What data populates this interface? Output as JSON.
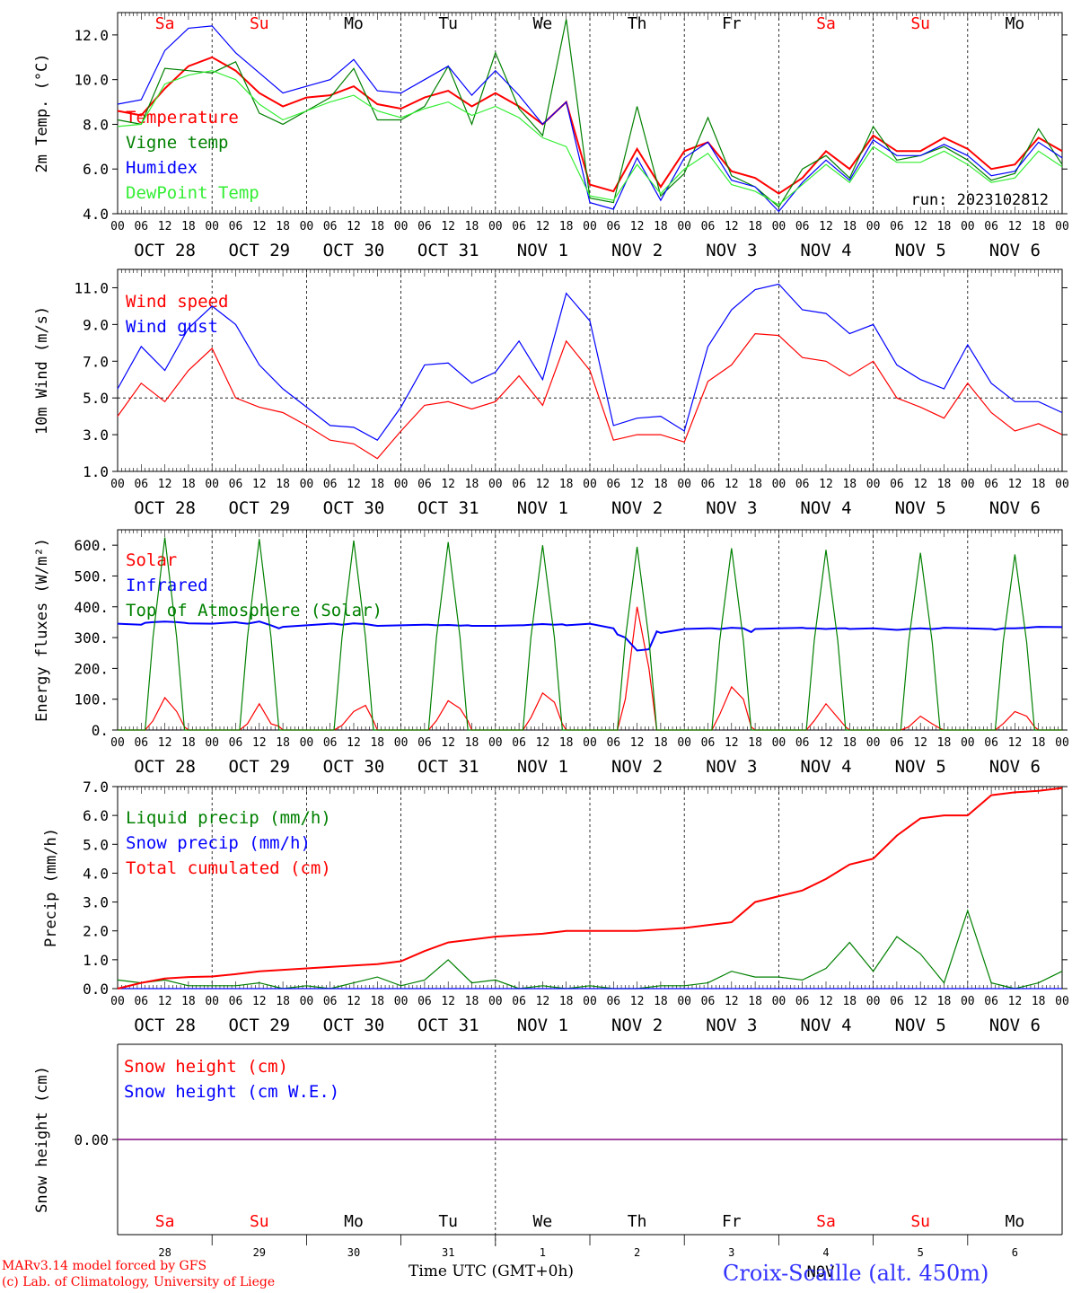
{
  "days": [
    "Sa",
    "Su",
    "Mo",
    "Tu",
    "We",
    "Th",
    "Fr",
    "Sa",
    "Su",
    "Mo"
  ],
  "weekend_flags": [
    true,
    true,
    false,
    false,
    false,
    false,
    false,
    true,
    true,
    false
  ],
  "dates": [
    "OCT 28",
    "OCT 29",
    "OCT 30",
    "OCT 31",
    "NOV  1",
    "NOV  2",
    "NOV  3",
    "NOV  4",
    "NOV  5",
    "NOV  6"
  ],
  "hour_ticks": [
    "00",
    "06",
    "12",
    "18"
  ],
  "last_hour_tick": "00",
  "bottom_day_numbers": [
    "28",
    "29",
    "30",
    "31",
    "1",
    "2",
    "3",
    "4",
    "5",
    "6"
  ],
  "bottom_month_label": "NOV",
  "colors": {
    "red": "#ff0000",
    "green": "#008000",
    "blue": "#0000ff",
    "lightgreen": "#33ee33",
    "purple": "#800080"
  },
  "footer": {
    "line1": "MARv3.14 model forced by GFS",
    "line2": "(c) Lab. of Climatology, University of Liege",
    "xlabel": "Time UTC (GMT+0h)",
    "station": "Croix-Scaille (alt. 450m)"
  },
  "chart_data": [
    {
      "type": "line",
      "ylabel": "2m Temp. (°C)",
      "ylim": [
        4.0,
        13.0
      ],
      "yticks": [
        "4.0",
        "6.0",
        "8.0",
        "10.0",
        "12.0"
      ],
      "ytick_values": [
        4,
        6,
        8,
        10,
        12
      ],
      "annotation": "run: 2023102812",
      "x_hours": [
        0,
        6,
        12,
        18,
        24,
        30,
        36,
        42,
        48,
        54,
        60,
        66,
        72,
        78,
        84,
        90,
        96,
        102,
        108,
        114,
        120,
        126,
        132,
        138,
        144,
        150,
        156,
        162,
        168,
        174,
        180,
        186,
        192,
        198,
        204,
        210,
        216,
        222,
        228,
        234,
        240
      ],
      "series": [
        {
          "name": "Temperature",
          "color": "#ff0000",
          "values": [
            8.6,
            8.4,
            9.6,
            10.6,
            11.0,
            10.4,
            9.4,
            8.8,
            9.2,
            9.3,
            9.7,
            8.9,
            8.7,
            9.2,
            9.5,
            8.8,
            9.4,
            8.8,
            8.0,
            9.0,
            5.3,
            5.0,
            6.9,
            5.2,
            6.8,
            7.2,
            5.9,
            5.6,
            4.9,
            5.6,
            6.8,
            6.0,
            7.5,
            6.8,
            6.8,
            7.4,
            6.9,
            6.0,
            6.2,
            7.4,
            6.8
          ]
        },
        {
          "name": "Vigne temp",
          "color": "#008000",
          "values": [
            8.2,
            8.0,
            10.5,
            10.4,
            10.3,
            10.8,
            8.5,
            8.0,
            8.6,
            9.2,
            10.5,
            8.2,
            8.2,
            8.8,
            10.6,
            8.0,
            11.2,
            8.7,
            7.5,
            12.7,
            4.7,
            4.5,
            8.8,
            4.8,
            5.8,
            8.3,
            5.7,
            5.2,
            4.3,
            6.0,
            6.6,
            5.6,
            7.9,
            6.4,
            6.6,
            7.0,
            6.4,
            5.5,
            5.8,
            7.8,
            6.2
          ]
        },
        {
          "name": "Humidex",
          "color": "#0000ff",
          "values": [
            8.9,
            9.1,
            11.3,
            12.3,
            12.4,
            11.2,
            10.3,
            9.4,
            9.7,
            10.0,
            10.9,
            9.5,
            9.4,
            10.0,
            10.6,
            9.3,
            10.4,
            9.3,
            8.0,
            9.0,
            4.5,
            4.2,
            6.5,
            4.6,
            6.5,
            7.2,
            5.5,
            5.2,
            4.1,
            5.4,
            6.4,
            5.5,
            7.3,
            6.6,
            6.6,
            7.1,
            6.6,
            5.7,
            5.9,
            7.2,
            6.5
          ]
        },
        {
          "name": "DewPoint Temp",
          "color": "#33ee33",
          "values": [
            7.9,
            8.0,
            9.8,
            10.2,
            10.4,
            10.0,
            8.9,
            8.2,
            8.6,
            9.0,
            9.3,
            8.6,
            8.3,
            8.7,
            9.0,
            8.4,
            8.8,
            8.3,
            7.4,
            7.0,
            4.8,
            4.6,
            6.2,
            4.9,
            6.0,
            6.7,
            5.3,
            5.0,
            4.4,
            5.3,
            6.2,
            5.4,
            7.0,
            6.3,
            6.3,
            6.8,
            6.2,
            5.4,
            5.6,
            6.8,
            6.1
          ]
        }
      ]
    },
    {
      "type": "line",
      "ylabel": "10m Wind (m/s)",
      "ylim": [
        1.0,
        12.0
      ],
      "yticks": [
        "1.0",
        "3.0",
        "5.0",
        "7.0",
        "9.0",
        "11.0"
      ],
      "ytick_values": [
        1,
        3,
        5,
        7,
        9,
        11
      ],
      "reference_line": 5.0,
      "x_hours": [
        0,
        6,
        12,
        18,
        24,
        30,
        36,
        42,
        48,
        54,
        60,
        66,
        72,
        78,
        84,
        90,
        96,
        102,
        108,
        114,
        120,
        126,
        132,
        138,
        144,
        150,
        156,
        162,
        168,
        174,
        180,
        186,
        192,
        198,
        204,
        210,
        216,
        222,
        228,
        234,
        240
      ],
      "series": [
        {
          "name": "Wind speed",
          "color": "#ff0000",
          "values": [
            4.0,
            5.8,
            4.8,
            6.5,
            7.7,
            5.0,
            4.5,
            4.2,
            3.5,
            2.7,
            2.5,
            1.7,
            3.2,
            4.6,
            4.8,
            4.4,
            4.8,
            6.2,
            4.6,
            8.1,
            6.5,
            2.7,
            3.0,
            3.0,
            2.6,
            5.9,
            6.8,
            8.5,
            8.4,
            7.2,
            7.0,
            6.2,
            7.0,
            5.0,
            4.5,
            3.9,
            5.8,
            4.2,
            3.2,
            3.6,
            3.0
          ]
        },
        {
          "name": "Wind gust",
          "color": "#0000ff",
          "values": [
            5.5,
            7.8,
            6.5,
            8.8,
            10.0,
            9.0,
            6.8,
            5.5,
            4.5,
            3.5,
            3.4,
            2.7,
            4.5,
            6.8,
            6.9,
            5.8,
            6.4,
            8.1,
            6.0,
            10.7,
            9.2,
            3.5,
            3.9,
            4.0,
            3.2,
            7.8,
            9.8,
            10.9,
            11.2,
            9.8,
            9.6,
            8.5,
            9.0,
            6.8,
            6.0,
            5.5,
            7.9,
            5.8,
            4.8,
            4.8,
            4.2
          ]
        }
      ]
    },
    {
      "type": "line",
      "ylabel": "Energy fluxes (W/m²)",
      "ylim": [
        0,
        650
      ],
      "yticks": [
        "0.",
        "100.",
        "200.",
        "300.",
        "400.",
        "500.",
        "600."
      ],
      "ytick_values": [
        0,
        100,
        200,
        300,
        400,
        500,
        600
      ],
      "x_hours": [
        0,
        6,
        7,
        9,
        12,
        15,
        17,
        18,
        24,
        30,
        31,
        33,
        36,
        39,
        41,
        42,
        48,
        54,
        55,
        57,
        60,
        63,
        65,
        66,
        72,
        78,
        79,
        81,
        84,
        87,
        89,
        90,
        96,
        102,
        103,
        105,
        108,
        111,
        113,
        114,
        120,
        126,
        127,
        129,
        132,
        135,
        137,
        138,
        144,
        150,
        151,
        153,
        156,
        159,
        161,
        162,
        168,
        174,
        175,
        177,
        180,
        183,
        185,
        186,
        192,
        198,
        199,
        201,
        204,
        207,
        209,
        210,
        216,
        222,
        223,
        225,
        228,
        231,
        233,
        234,
        240
      ],
      "series": [
        {
          "name": "Solar",
          "color": "#ff0000",
          "values": [
            0,
            0,
            0,
            30,
            105,
            60,
            10,
            0,
            0,
            0,
            0,
            20,
            85,
            20,
            12,
            0,
            0,
            0,
            0,
            15,
            60,
            80,
            30,
            0,
            0,
            0,
            0,
            30,
            95,
            70,
            30,
            0,
            0,
            0,
            0,
            40,
            120,
            90,
            20,
            0,
            0,
            0,
            0,
            100,
            400,
            200,
            0,
            0,
            0,
            0,
            0,
            50,
            140,
            100,
            10,
            0,
            0,
            0,
            0,
            30,
            85,
            40,
            10,
            0,
            0,
            0,
            0,
            10,
            45,
            20,
            5,
            0,
            0,
            0,
            0,
            20,
            60,
            45,
            10,
            0,
            0
          ]
        },
        {
          "name": "Infrared",
          "color": "#0000ff",
          "values": [
            345,
            342,
            348,
            350,
            352,
            350,
            348,
            346,
            345,
            350,
            348,
            345,
            352,
            340,
            330,
            335,
            340,
            345,
            345,
            342,
            346,
            344,
            340,
            338,
            340,
            342,
            342,
            340,
            341,
            339,
            340,
            338,
            338,
            340,
            340,
            342,
            344,
            342,
            343,
            340,
            345,
            330,
            310,
            300,
            258,
            262,
            320,
            315,
            328,
            330,
            330,
            328,
            332,
            330,
            318,
            328,
            330,
            332,
            330,
            330,
            328,
            330,
            330,
            328,
            330,
            325,
            326,
            328,
            330,
            328,
            330,
            332,
            330,
            328,
            326,
            330,
            330,
            332,
            334,
            335,
            334
          ]
        },
        {
          "name": "Top of Atmosphere (Solar)",
          "color": "#008000",
          "values": [
            0,
            0,
            0,
            300,
            625,
            300,
            0,
            0,
            0,
            0,
            0,
            300,
            620,
            300,
            0,
            0,
            0,
            0,
            0,
            300,
            615,
            300,
            0,
            0,
            0,
            0,
            0,
            300,
            610,
            300,
            0,
            0,
            0,
            0,
            0,
            300,
            600,
            300,
            0,
            0,
            0,
            0,
            0,
            295,
            595,
            295,
            0,
            0,
            0,
            0,
            0,
            290,
            590,
            290,
            0,
            0,
            0,
            0,
            0,
            290,
            585,
            290,
            0,
            0,
            0,
            0,
            0,
            285,
            575,
            285,
            0,
            0,
            0,
            0,
            0,
            285,
            570,
            285,
            0,
            0,
            0
          ]
        }
      ]
    },
    {
      "type": "line",
      "ylabel": "Precip (mm/h)",
      "ylim": [
        0,
        7.0
      ],
      "yticks": [
        "0.0",
        "1.0",
        "2.0",
        "3.0",
        "4.0",
        "5.0",
        "6.0",
        "7.0"
      ],
      "ytick_values": [
        0,
        1,
        2,
        3,
        4,
        5,
        6,
        7
      ],
      "x_hours": [
        0,
        6,
        12,
        18,
        24,
        30,
        36,
        42,
        48,
        54,
        60,
        66,
        72,
        78,
        84,
        90,
        96,
        102,
        108,
        114,
        120,
        126,
        132,
        138,
        144,
        150,
        156,
        162,
        168,
        174,
        180,
        186,
        192,
        198,
        204,
        210,
        216,
        222,
        228,
        234,
        240
      ],
      "series": [
        {
          "name": "Liquid precip (mm/h)",
          "color": "#008000",
          "values": [
            0.3,
            0.2,
            0.3,
            0.1,
            0.1,
            0.1,
            0.2,
            0.0,
            0.1,
            0.0,
            0.2,
            0.4,
            0.1,
            0.3,
            1.0,
            0.2,
            0.3,
            0.0,
            0.1,
            0.0,
            0.1,
            0.0,
            0.0,
            0.1,
            0.1,
            0.2,
            0.6,
            0.4,
            0.4,
            0.3,
            0.7,
            1.6,
            0.6,
            1.8,
            1.2,
            0.2,
            2.7,
            0.2,
            0.0,
            0.2,
            0.6
          ]
        },
        {
          "name": "Snow precip (mm/h)",
          "color": "#0000ff",
          "values": [
            0,
            0,
            0,
            0,
            0,
            0,
            0,
            0,
            0,
            0,
            0,
            0,
            0,
            0,
            0,
            0,
            0,
            0,
            0,
            0,
            0,
            0,
            0,
            0,
            0,
            0,
            0,
            0,
            0,
            0,
            0,
            0,
            0,
            0,
            0,
            0,
            0,
            0,
            0,
            0,
            0
          ]
        },
        {
          "name": "Total cumulated (cm)",
          "color": "#ff0000",
          "values": [
            0.0,
            0.2,
            0.35,
            0.4,
            0.42,
            0.5,
            0.6,
            0.65,
            0.7,
            0.75,
            0.8,
            0.85,
            0.95,
            1.3,
            1.6,
            1.7,
            1.8,
            1.85,
            1.9,
            2.0,
            2.0,
            2.0,
            2.0,
            2.05,
            2.1,
            2.2,
            2.3,
            3.0,
            3.2,
            3.4,
            3.8,
            4.3,
            4.5,
            5.3,
            5.9,
            6.0,
            6.0,
            6.7,
            6.8,
            6.85,
            6.95
          ]
        }
      ]
    },
    {
      "type": "line",
      "ylabel": "Snow height (cm)",
      "ylim": [
        -1,
        1
      ],
      "yticks": [
        "0.00"
      ],
      "ytick_values": [
        0
      ],
      "x_hours": [
        0,
        240
      ],
      "series": [
        {
          "name": "Snow height (cm)",
          "color": "#ff0000",
          "values": [
            0,
            0
          ]
        },
        {
          "name": "Snow height (cm W.E.)",
          "color": "#0000ff",
          "values": [
            0,
            0
          ]
        }
      ]
    }
  ]
}
